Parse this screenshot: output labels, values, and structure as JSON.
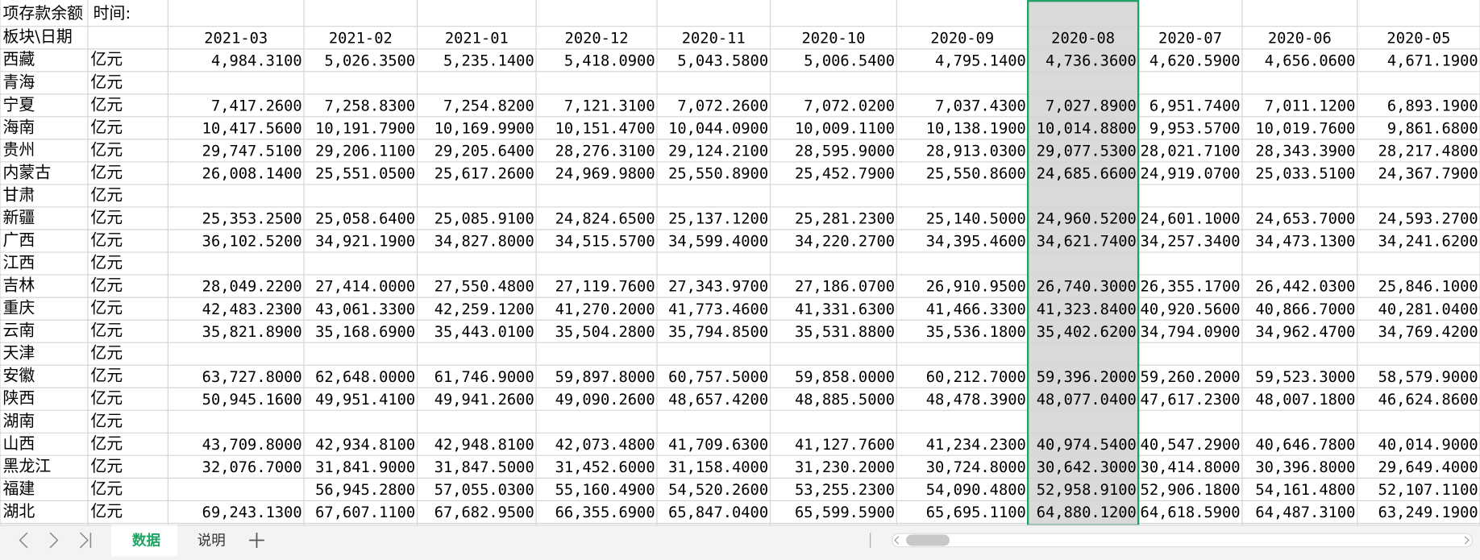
{
  "table": {
    "title": "项存款余额  时间:",
    "header": [
      "板块\\日期",
      "2021-03",
      "2021-02",
      "2021-01",
      "2020-12",
      "2020-11",
      "2020-10",
      "2020-09",
      "2020-08",
      "2020-07",
      "2020-06",
      "2020-05"
    ],
    "rows": [
      {
        "region": "西藏",
        "unit": "亿元",
        "values": [
          "4,984.3100",
          "5,026.3500",
          "5,235.1400",
          "5,418.0900",
          "5,043.5800",
          "5,006.5400",
          "4,795.1400",
          "4,736.3600",
          "4,620.5900",
          "4,656.0600",
          "4,671.1900"
        ]
      },
      {
        "region": "青海",
        "unit": "亿元",
        "values": []
      },
      {
        "region": "宁夏",
        "unit": "亿元",
        "values": [
          "7,417.2600",
          "7,258.8300",
          "7,254.8200",
          "7,121.3100",
          "7,072.2600",
          "7,072.0200",
          "7,037.4300",
          "7,027.8900",
          "6,951.7400",
          "7,011.1200",
          "6,893.1900"
        ]
      },
      {
        "region": "海南",
        "unit": "亿元",
        "values": [
          "10,417.5600",
          "10,191.7900",
          "10,169.9900",
          "10,151.4700",
          "10,044.0900",
          "10,009.1100",
          "10,138.1900",
          "10,014.8800",
          "9,953.5700",
          "10,019.7600",
          "9,861.6800"
        ]
      },
      {
        "region": "贵州",
        "unit": "亿元",
        "values": [
          "29,747.5100",
          "29,206.1100",
          "29,205.6400",
          "28,276.3100",
          "29,124.2100",
          "28,595.9000",
          "28,913.0300",
          "29,077.5300",
          "28,021.7100",
          "28,343.3900",
          "28,217.4800"
        ]
      },
      {
        "region": "内蒙古",
        "unit": "亿元",
        "values": [
          "26,008.1400",
          "25,551.0500",
          "25,617.2600",
          "24,969.9800",
          "25,550.8900",
          "25,452.7900",
          "25,550.8600",
          "24,685.6600",
          "24,919.0700",
          "25,033.5100",
          "24,367.7900"
        ]
      },
      {
        "region": "甘肃",
        "unit": "亿元",
        "values": []
      },
      {
        "region": "新疆",
        "unit": "亿元",
        "values": [
          "25,353.2500",
          "25,058.6400",
          "25,085.9100",
          "24,824.6500",
          "25,137.1200",
          "25,281.2300",
          "25,140.5000",
          "24,960.5200",
          "24,601.1000",
          "24,653.7000",
          "24,593.2700"
        ]
      },
      {
        "region": "广西",
        "unit": "亿元",
        "values": [
          "36,102.5200",
          "34,921.1900",
          "34,827.8000",
          "34,515.5700",
          "34,599.4000",
          "34,220.2700",
          "34,395.4600",
          "34,621.7400",
          "34,257.3400",
          "34,473.1300",
          "34,241.6200"
        ]
      },
      {
        "region": "江西",
        "unit": "亿元",
        "values": []
      },
      {
        "region": "吉林",
        "unit": "亿元",
        "values": [
          "28,049.2200",
          "27,414.0000",
          "27,550.4800",
          "27,119.7600",
          "27,343.9700",
          "27,186.0700",
          "26,910.9500",
          "26,740.3000",
          "26,355.1700",
          "26,442.0300",
          "25,846.1000"
        ]
      },
      {
        "region": "重庆",
        "unit": "亿元",
        "values": [
          "42,483.2300",
          "43,061.3300",
          "42,259.1200",
          "41,270.2000",
          "41,773.4600",
          "41,331.6300",
          "41,466.3300",
          "41,323.8400",
          "40,920.5600",
          "40,866.7000",
          "40,281.0400"
        ]
      },
      {
        "region": "云南",
        "unit": "亿元",
        "values": [
          "35,821.8900",
          "35,168.6900",
          "35,443.0100",
          "35,504.2800",
          "35,794.8500",
          "35,531.8800",
          "35,536.1800",
          "35,402.6200",
          "34,794.0900",
          "34,962.4700",
          "34,769.4200"
        ]
      },
      {
        "region": "天津",
        "unit": "亿元",
        "values": []
      },
      {
        "region": "安徽",
        "unit": "亿元",
        "values": [
          "63,727.8000",
          "62,648.0000",
          "61,746.9000",
          "59,897.8000",
          "60,757.5000",
          "59,858.0000",
          "60,212.7000",
          "59,396.2000",
          "59,260.2000",
          "59,523.3000",
          "58,579.9000"
        ]
      },
      {
        "region": "陕西",
        "unit": "亿元",
        "values": [
          "50,945.1600",
          "49,951.4100",
          "49,941.2600",
          "49,090.2600",
          "48,657.4200",
          "48,885.5000",
          "48,478.3900",
          "48,077.0400",
          "47,617.2300",
          "48,007.1800",
          "46,624.8600"
        ]
      },
      {
        "region": "湖南",
        "unit": "亿元",
        "values": []
      },
      {
        "region": "山西",
        "unit": "亿元",
        "values": [
          "43,709.8000",
          "42,934.8100",
          "42,948.8100",
          "42,073.4800",
          "41,709.6300",
          "41,127.7600",
          "41,234.2300",
          "40,974.5400",
          "40,547.2900",
          "40,646.7800",
          "40,014.9000"
        ]
      },
      {
        "region": "黑龙江",
        "unit": "亿元",
        "values": [
          "32,076.7000",
          "31,841.9000",
          "31,847.5000",
          "31,452.6000",
          "31,158.4000",
          "31,230.2000",
          "30,724.8000",
          "30,642.3000",
          "30,414.8000",
          "30,396.8000",
          "29,649.4000"
        ]
      },
      {
        "region": "福建",
        "unit": "亿元",
        "values": [
          null,
          "56,945.2800",
          "57,055.0300",
          "55,160.4900",
          "54,520.2600",
          "53,255.2300",
          "54,090.4800",
          "52,958.9100",
          "52,906.1800",
          "54,161.4800",
          "52,107.1100"
        ]
      },
      {
        "region": "湖北",
        "unit": "亿元",
        "values": [
          "69,243.1300",
          "67,607.1100",
          "67,682.9500",
          "66,355.6900",
          "65,847.0400",
          "65,599.5900",
          "65,695.1100",
          "64,880.1200",
          "64,618.5900",
          "64,487.3100",
          "63,249.1900"
        ]
      }
    ]
  },
  "tabs": [
    "数据",
    "说明"
  ]
}
